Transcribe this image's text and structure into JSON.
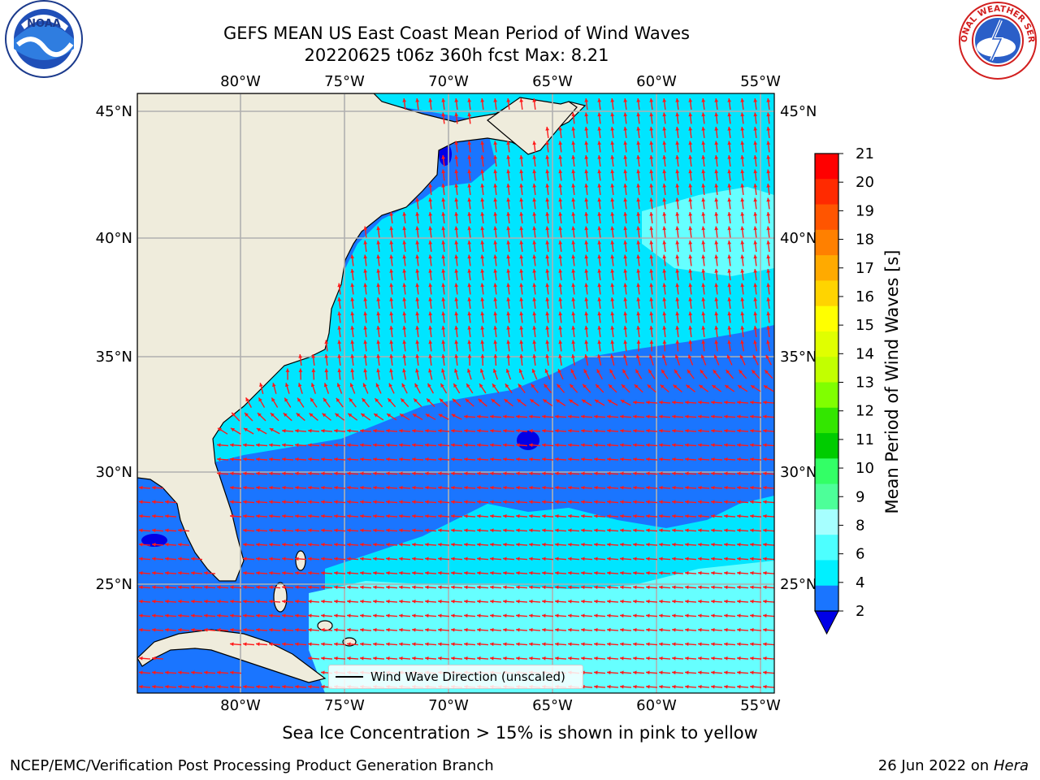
{
  "title": {
    "line1": "GEFS MEAN US East Coast Mean Period of Wind Waves",
    "line2": "20220625 t06z 360h fcst   Max: 8.21"
  },
  "logos": {
    "left": {
      "name": "NOAA",
      "ring_text": "NATIONAL OCEANIC AND ATMOSPHERIC ADMINISTRATION · U.S. DEPARTMENT OF COMMERCE"
    },
    "right": {
      "name": "NATIONAL WEATHER SERVICE"
    }
  },
  "map": {
    "lon_labels": [
      "80°W",
      "75°W",
      "70°W",
      "65°W",
      "60°W",
      "55°W"
    ],
    "lat_labels": [
      "45°N",
      "40°N",
      "35°N",
      "30°N",
      "25°N"
    ],
    "colors": {
      "land": "#efecdc",
      "coast": "#000000",
      "grid": "#b0b0b0",
      "arrow": "#ff1a1a",
      "band_2_4": "#1a75ff",
      "band_4_6": "#00e5ff",
      "band_6_8": "#66ffff",
      "below_2": "#0000e6"
    },
    "legend": "Wind Wave Direction (unscaled)"
  },
  "colorbar": {
    "label": "Mean Period of Wind Waves [s]",
    "ticks": [
      "21",
      "20",
      "19",
      "18",
      "17",
      "16",
      "15",
      "14",
      "13",
      "12",
      "11",
      "10",
      "9",
      "8",
      "6",
      "4",
      "2"
    ],
    "colors_top_down": [
      "#ff0000",
      "#ff2a00",
      "#ff5500",
      "#ff8000",
      "#ffaa00",
      "#ffd400",
      "#ffff00",
      "#e0ff00",
      "#c2ff00",
      "#80ff00",
      "#33e600",
      "#00cc00",
      "#33ff66",
      "#4dff99",
      "#a6ffff",
      "#4dffff",
      "#00f0ff",
      "#1a75ff"
    ],
    "under_color": "#0000e6"
  },
  "note": "Sea Ice Concentration > 15% is shown in pink to yellow",
  "footer": {
    "left": "NCEP/EMC/Verification Post Processing Product Generation Branch",
    "right_prefix": "26 Jun 2022 on",
    "right_host": "Hera"
  }
}
